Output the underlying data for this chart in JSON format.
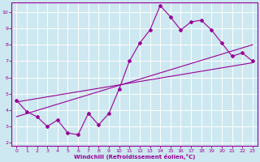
{
  "xlabel": "Windchill (Refroidissement éolien,°C)",
  "bg_color": "#cde8f0",
  "line_color": "#990099",
  "grid_color": "#ffffff",
  "xlim": [
    -0.5,
    23.5
  ],
  "ylim": [
    1.8,
    10.6
  ],
  "xticks": [
    0,
    1,
    2,
    3,
    4,
    5,
    6,
    7,
    8,
    9,
    10,
    11,
    12,
    13,
    14,
    15,
    16,
    17,
    18,
    19,
    20,
    21,
    22,
    23
  ],
  "yticks": [
    2,
    3,
    4,
    5,
    6,
    7,
    8,
    9,
    10
  ],
  "line1_x": [
    0,
    1,
    2,
    3,
    4,
    5,
    6,
    7,
    8,
    9,
    10,
    11,
    12,
    13,
    14,
    15,
    16,
    17,
    18,
    19,
    20,
    21,
    22,
    23
  ],
  "line1_y": [
    4.6,
    3.9,
    3.6,
    3.0,
    3.4,
    2.6,
    2.5,
    3.8,
    3.1,
    3.8,
    5.3,
    7.0,
    8.1,
    8.9,
    10.4,
    9.7,
    8.9,
    9.4,
    9.5,
    8.9,
    8.1,
    7.3,
    7.5,
    7.0
  ],
  "line2_x": [
    0,
    23
  ],
  "line2_y": [
    3.6,
    8.0
  ],
  "line3_x": [
    0,
    23
  ],
  "line3_y": [
    4.5,
    6.9
  ]
}
